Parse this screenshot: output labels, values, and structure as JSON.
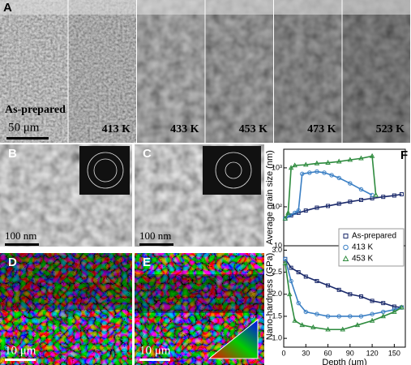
{
  "panels": {
    "a": {
      "letter": "A",
      "strips": [
        "As-prepared",
        "413 K",
        "433 K",
        "453 K",
        "473 K",
        "523 K"
      ],
      "scale": "50 μm"
    },
    "b": {
      "letter": "B",
      "scale": "100 nm"
    },
    "c": {
      "letter": "C",
      "scale": "100 nm"
    },
    "d": {
      "letter": "D",
      "scale": "10 μm"
    },
    "e": {
      "letter": "E",
      "scale": "10 μm"
    },
    "f": {
      "letter": "F"
    }
  },
  "chart_data": [
    {
      "type": "scatter",
      "y_label": "Average grain size (nm)",
      "log_y": true,
      "xlim": [
        0,
        165
      ],
      "ylim": [
        10,
        3000
      ],
      "yticks": [
        {
          "value": 10,
          "label": "10"
        },
        {
          "value": 100,
          "label": "10²"
        },
        {
          "value": 1000,
          "label": "10³"
        }
      ],
      "series": [
        {
          "color": "#1b2a6b",
          "marker": "square",
          "x": [
            2,
            10,
            20,
            30,
            45,
            60,
            75,
            90,
            105,
            120,
            135,
            150,
            160
          ],
          "values": [
            50,
            60,
            70,
            80,
            95,
            105,
            120,
            135,
            150,
            165,
            180,
            195,
            210
          ]
        },
        {
          "color": "#3a7fc4",
          "marker": "circle",
          "x": [
            2,
            8,
            15,
            20,
            25,
            35,
            45,
            55,
            65,
            75,
            90,
            105,
            120
          ],
          "values": [
            50,
            60,
            70,
            80,
            700,
            750,
            800,
            750,
            650,
            550,
            400,
            280,
            200
          ]
        },
        {
          "color": "#2e8b3e",
          "marker": "triangle",
          "x": [
            2,
            6,
            10,
            15,
            30,
            45,
            60,
            75,
            90,
            105,
            120,
            125
          ],
          "values": [
            50,
            70,
            1000,
            1150,
            1200,
            1300,
            1350,
            1450,
            1600,
            1750,
            2000,
            200
          ]
        }
      ]
    },
    {
      "type": "scatter",
      "y_label": "Nano-hardness (GPa)",
      "x_label": "Depth (μm)",
      "xlim": [
        0,
        165
      ],
      "ylim": [
        0.8,
        3.1
      ],
      "xticks": [
        0,
        30,
        60,
        90,
        120,
        150
      ],
      "yticks": [
        {
          "value": 1,
          "label": "1.0"
        },
        1.5,
        {
          "value": 2,
          "label": "2.0"
        },
        2.5,
        {
          "value": 3,
          "label": "3.0"
        }
      ],
      "legend": "upper right",
      "series": [
        {
          "name": "As-prepared",
          "color": "#1b2a6b",
          "marker": "square",
          "x": [
            2,
            10,
            20,
            30,
            45,
            60,
            75,
            90,
            105,
            120,
            135,
            150,
            160
          ],
          "values": [
            2.8,
            2.6,
            2.5,
            2.4,
            2.3,
            2.2,
            2.1,
            2.0,
            1.95,
            1.85,
            1.8,
            1.72,
            1.7
          ]
        },
        {
          "name": "413 K",
          "color": "#3a7fc4",
          "marker": "circle",
          "x": [
            2,
            10,
            20,
            30,
            45,
            60,
            75,
            90,
            105,
            120,
            135,
            150,
            160
          ],
          "values": [
            2.8,
            2.3,
            1.8,
            1.6,
            1.55,
            1.5,
            1.5,
            1.5,
            1.5,
            1.55,
            1.6,
            1.65,
            1.7
          ]
        },
        {
          "name": "453 K",
          "color": "#2e8b3e",
          "marker": "triangle",
          "x": [
            2,
            8,
            15,
            25,
            40,
            60,
            80,
            100,
            120,
            135,
            150,
            160
          ],
          "values": [
            2.7,
            2.0,
            1.4,
            1.3,
            1.25,
            1.2,
            1.2,
            1.3,
            1.4,
            1.5,
            1.6,
            1.7
          ]
        }
      ]
    }
  ]
}
